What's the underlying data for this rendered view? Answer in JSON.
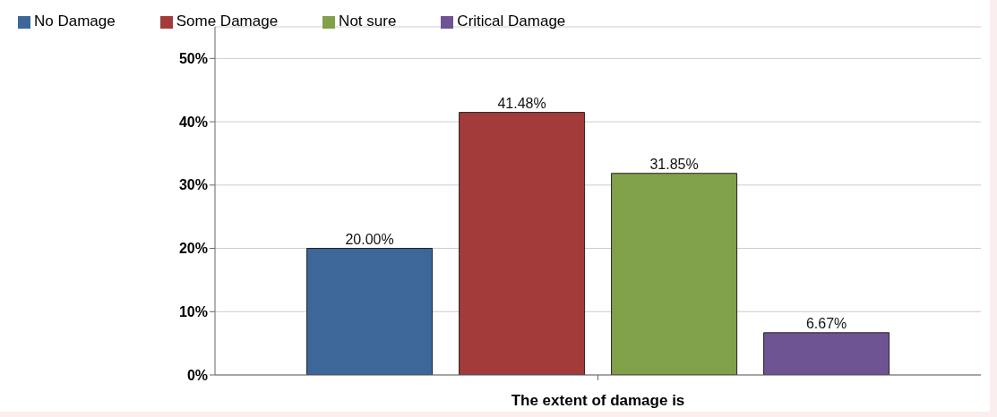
{
  "chart_data": {
    "type": "bar",
    "categories": [
      null
    ],
    "xlabel": "The extent of damage is",
    "series": [
      {
        "name": "No Damage",
        "color": "#3d6699",
        "values": [
          20.0
        ],
        "value_labels": [
          "20.00%"
        ]
      },
      {
        "name": "Some Damage",
        "color": "#a33b3b",
        "values": [
          41.48
        ],
        "value_labels": [
          "41.48%"
        ]
      },
      {
        "name": "Not sure",
        "color": "#80a04a",
        "values": [
          31.85
        ],
        "value_labels": [
          "31.85%"
        ]
      },
      {
        "name": "Critical Damage",
        "color": "#6f5494",
        "values": [
          6.67
        ],
        "value_labels": [
          "6.67%"
        ]
      }
    ],
    "ylim": [
      0,
      55
    ],
    "yticks": [
      {
        "value": 0,
        "label": "0%"
      },
      {
        "value": 10,
        "label": "10%"
      },
      {
        "value": 20,
        "label": "20%"
      },
      {
        "value": 30,
        "label": "30%"
      },
      {
        "value": 40,
        "label": "40%"
      },
      {
        "value": 50,
        "label": "50%"
      }
    ],
    "grid": "y",
    "legend": "top left"
  }
}
